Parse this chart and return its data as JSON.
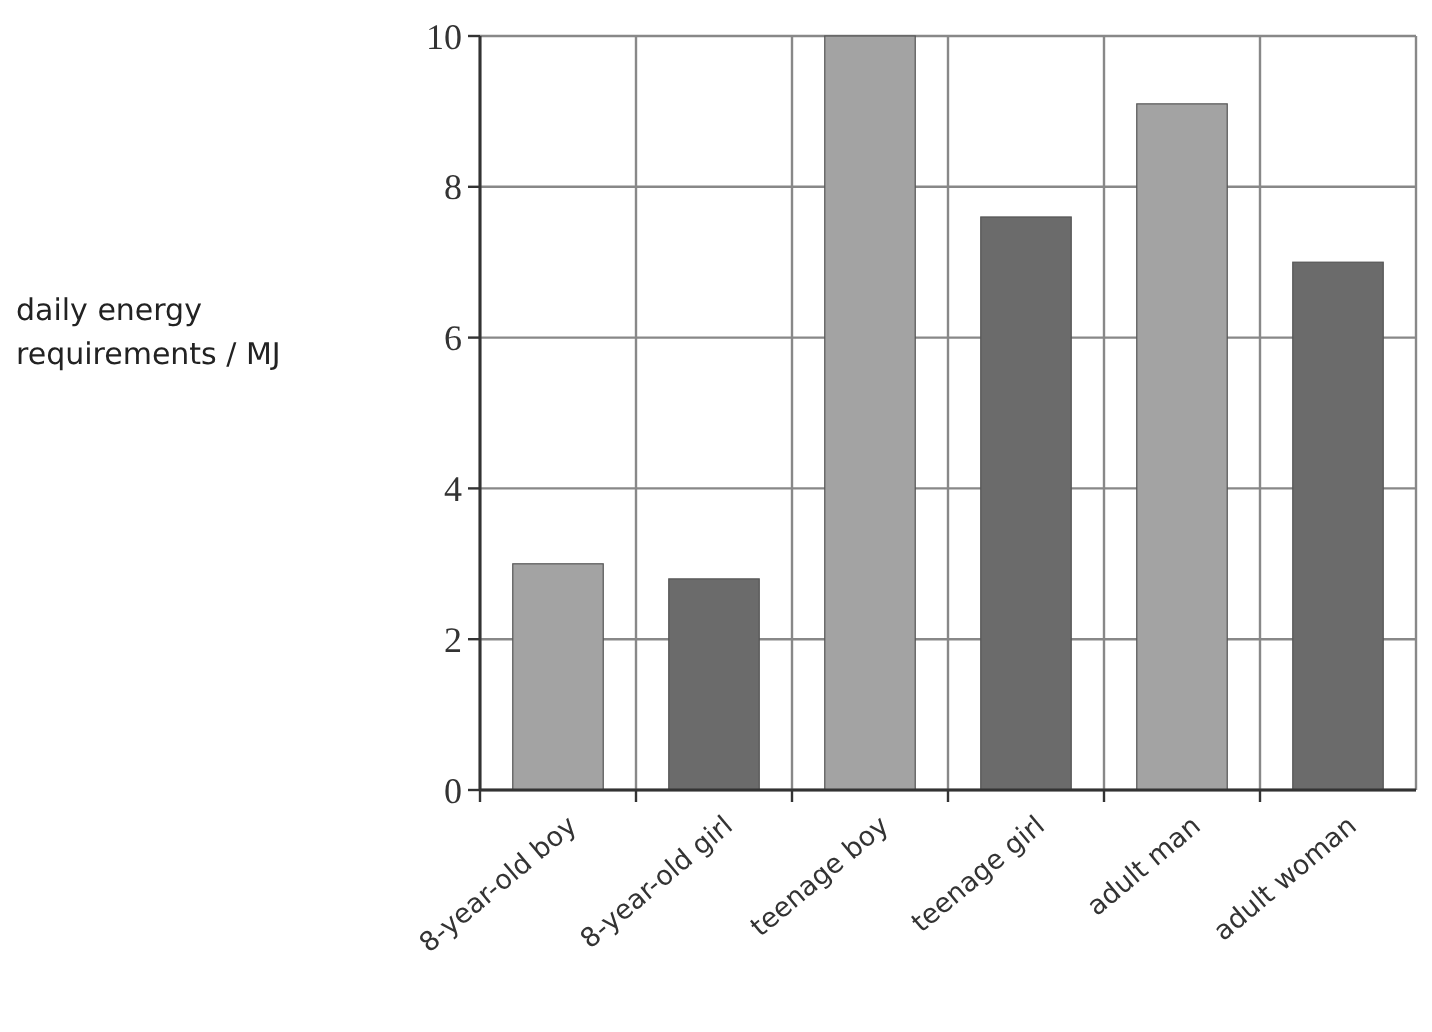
{
  "chart_data": {
    "type": "bar",
    "ylabel": "daily energy requirements / MJ",
    "categories": [
      "8-year-old boy",
      "8-year-old girl",
      "teenage boy",
      "teenage girl",
      "adult man",
      "adult woman"
    ],
    "values": [
      3.0,
      2.8,
      10,
      7.6,
      9.1,
      7.0
    ],
    "colors": [
      "#a3a3a3",
      "#6b6b6b",
      "#a3a3a3",
      "#6b6b6b",
      "#a3a3a3",
      "#6b6b6b"
    ],
    "ylim": [
      0,
      10
    ],
    "yticks": [
      0,
      2,
      4,
      6,
      8,
      10
    ],
    "grid": true
  }
}
